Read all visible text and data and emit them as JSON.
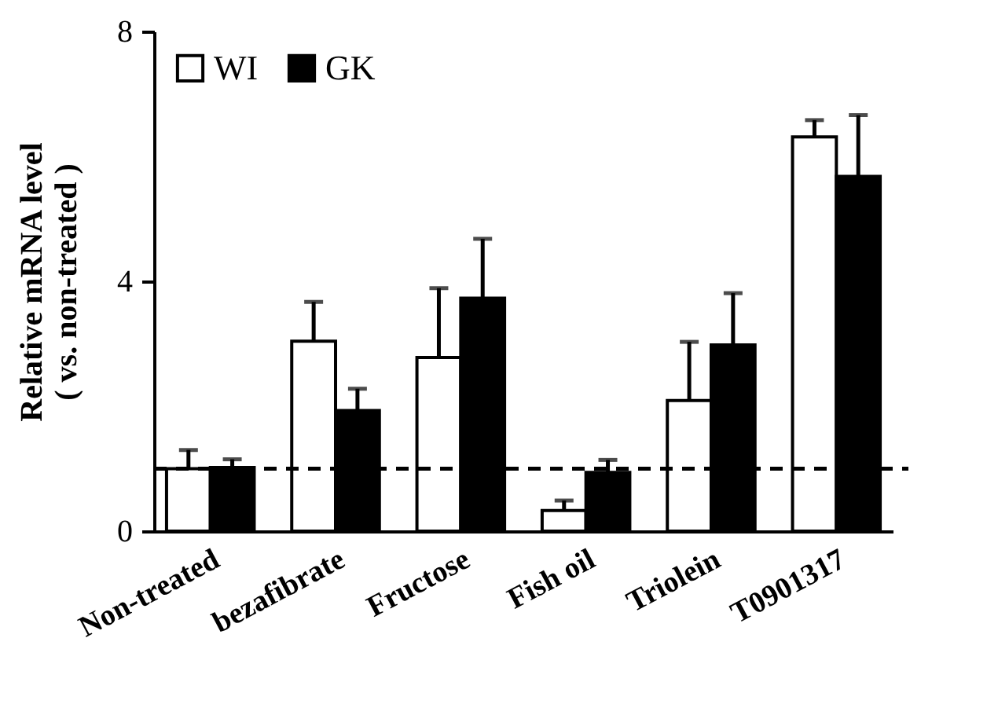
{
  "chart_data": {
    "type": "bar",
    "ylabel": "Relative mRNA level\n( vs. non-treated )",
    "categories": [
      "Non-treated",
      "bezafibrate",
      "Fructose",
      "Fish oil",
      "Triolein",
      "T0901317"
    ],
    "series": [
      {
        "name": "WI",
        "color": "#ffffff",
        "values": [
          1.0,
          3.04,
          2.78,
          0.33,
          2.09,
          6.31
        ],
        "errors": [
          [
            1.0,
            1.3
          ],
          [
            3.04,
            3.67
          ],
          [
            2.78,
            3.89
          ],
          [
            0.33,
            0.49
          ],
          [
            2.09,
            3.03
          ],
          [
            6.31,
            6.58
          ]
        ]
      },
      {
        "name": "GK",
        "color": "#000000",
        "values": [
          1.02,
          1.93,
          3.73,
          0.94,
          2.98,
          5.68
        ],
        "errors": [
          [
            1.02,
            1.15
          ],
          [
            1.93,
            2.28
          ],
          [
            3.73,
            4.68
          ],
          [
            0.94,
            1.14
          ],
          [
            2.98,
            3.81
          ],
          [
            5.68,
            6.66
          ]
        ]
      }
    ],
    "ylim": [
      0,
      8
    ],
    "yticks": [
      0,
      4,
      8
    ],
    "ref_lines": [
      {
        "axis": "y",
        "value": 1,
        "line_style": "dashed",
        "color": "#000000"
      }
    ],
    "grid": false,
    "legend": "top left"
  }
}
